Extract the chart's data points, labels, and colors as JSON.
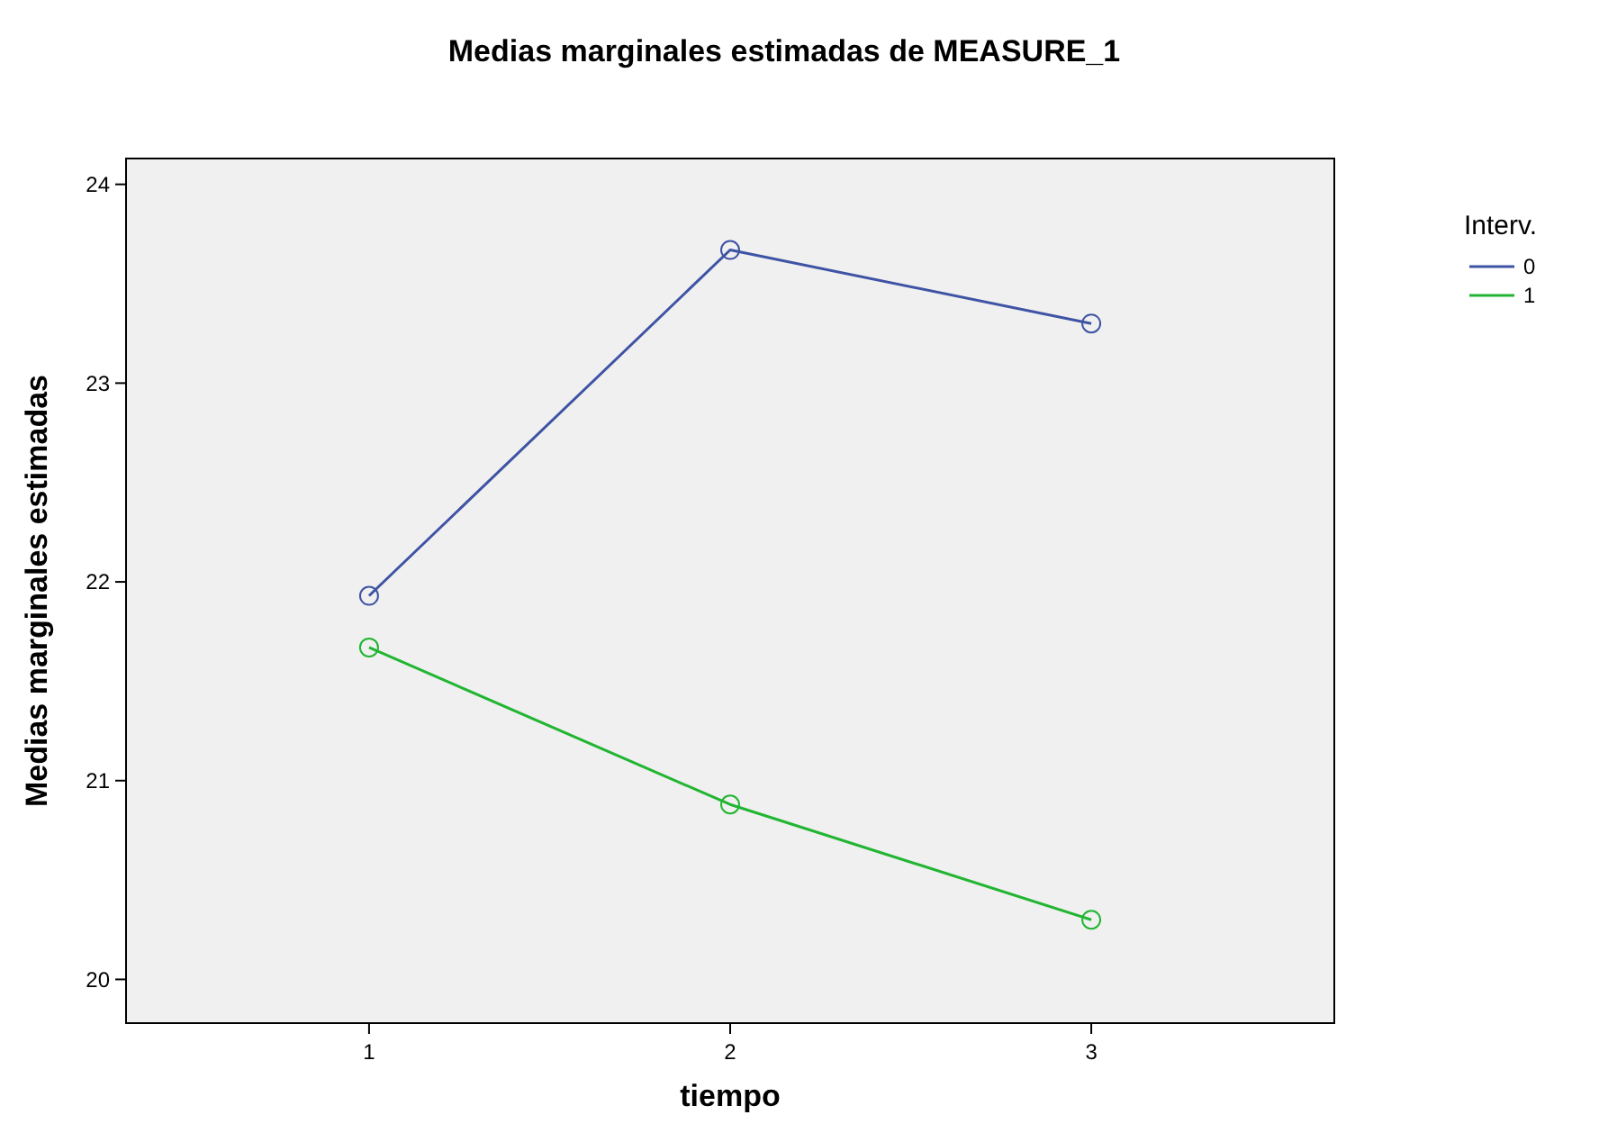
{
  "chart_data": {
    "type": "line",
    "title": "Medias marginales estimadas de MEASURE_1",
    "xlabel": "tiempo",
    "ylabel": "Medias marginales estimadas",
    "legend_title": "Interv.",
    "categories": [
      "1",
      "2",
      "3"
    ],
    "series": [
      {
        "name": "0",
        "color": "#3e53a4",
        "values": [
          21.93,
          23.67,
          23.3
        ]
      },
      {
        "name": "1",
        "color": "#21b531",
        "values": [
          21.67,
          20.88,
          20.3
        ]
      }
    ],
    "ylim": [
      19.78,
      24.13
    ],
    "yticks": [
      20,
      21,
      22,
      23,
      24
    ],
    "marker": "circle",
    "legend": "top right",
    "grid": false
  }
}
